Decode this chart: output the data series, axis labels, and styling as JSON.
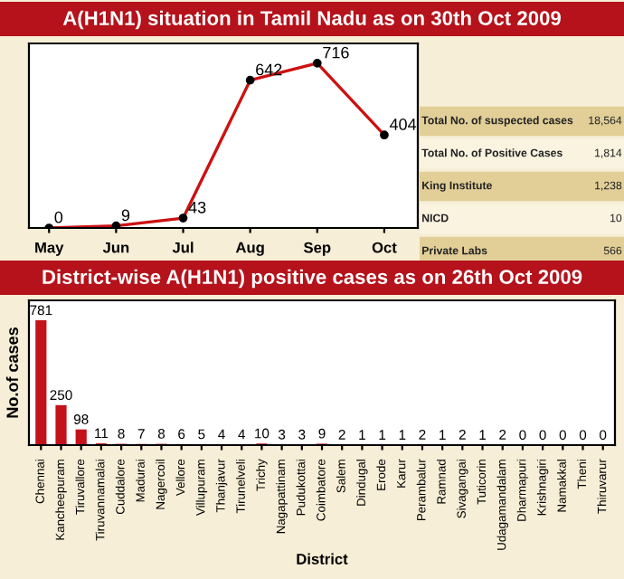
{
  "chart_data": [
    {
      "type": "line",
      "title": "A(H1N1) situation in Tamil Nadu as on 30th Oct 2009",
      "categories": [
        "May",
        "Jun",
        "Jul",
        "Aug",
        "Sep",
        "Oct"
      ],
      "series": [
        {
          "color": "#cc1111",
          "values": [
            0,
            9,
            43,
            642,
            716,
            404
          ]
        }
      ],
      "data_labels": true,
      "marker": "circle",
      "line_style": "solid",
      "tick_labels": "x",
      "grid": false,
      "legend": false
    },
    {
      "type": "other",
      "categories": [
        "Total No. of suspected cases",
        "Total No. of Positive Cases",
        "King Institute",
        "NICD",
        "Private Labs"
      ],
      "value_labels": [
        "18,564",
        "1,814",
        "1,238",
        "10",
        "566"
      ]
    },
    {
      "type": "bar",
      "title": "District-wise A(H1N1) positive cases as on 26th Oct 2009",
      "xlabel": "District",
      "ylabel": "No.of cases",
      "categories": [
        "Chennai",
        "Kancheepuram",
        "Tiruvallore",
        "Tiruvannamalai",
        "Cuddalore",
        "Madurai",
        "Nagercoil",
        "Vellore",
        "Villupuram",
        "Thanjavur",
        "Tirunelveli",
        "Trichy",
        "Nagapattinam",
        "Pudukottai",
        "Coimbatore",
        "Salem",
        "Dindugal",
        "Erode",
        "Karur",
        "Perambalur",
        "Ramnad",
        "Sivagangai",
        "Tuticorin",
        "Udagamandalam",
        "Dharmapuri",
        "Krishnagiri",
        "Namakkal",
        "Theni",
        "Thiruvarur"
      ],
      "series": [
        {
          "color": "#c4121a",
          "values": [
            781,
            250,
            98,
            11,
            8,
            7,
            8,
            6,
            5,
            4,
            4,
            10,
            3,
            3,
            9,
            2,
            1,
            1,
            1,
            2,
            1,
            2,
            1,
            2,
            0,
            0,
            0,
            0,
            0
          ]
        }
      ],
      "data_labels": true,
      "tick_labels": "x",
      "grid": false,
      "legend": false
    }
  ]
}
